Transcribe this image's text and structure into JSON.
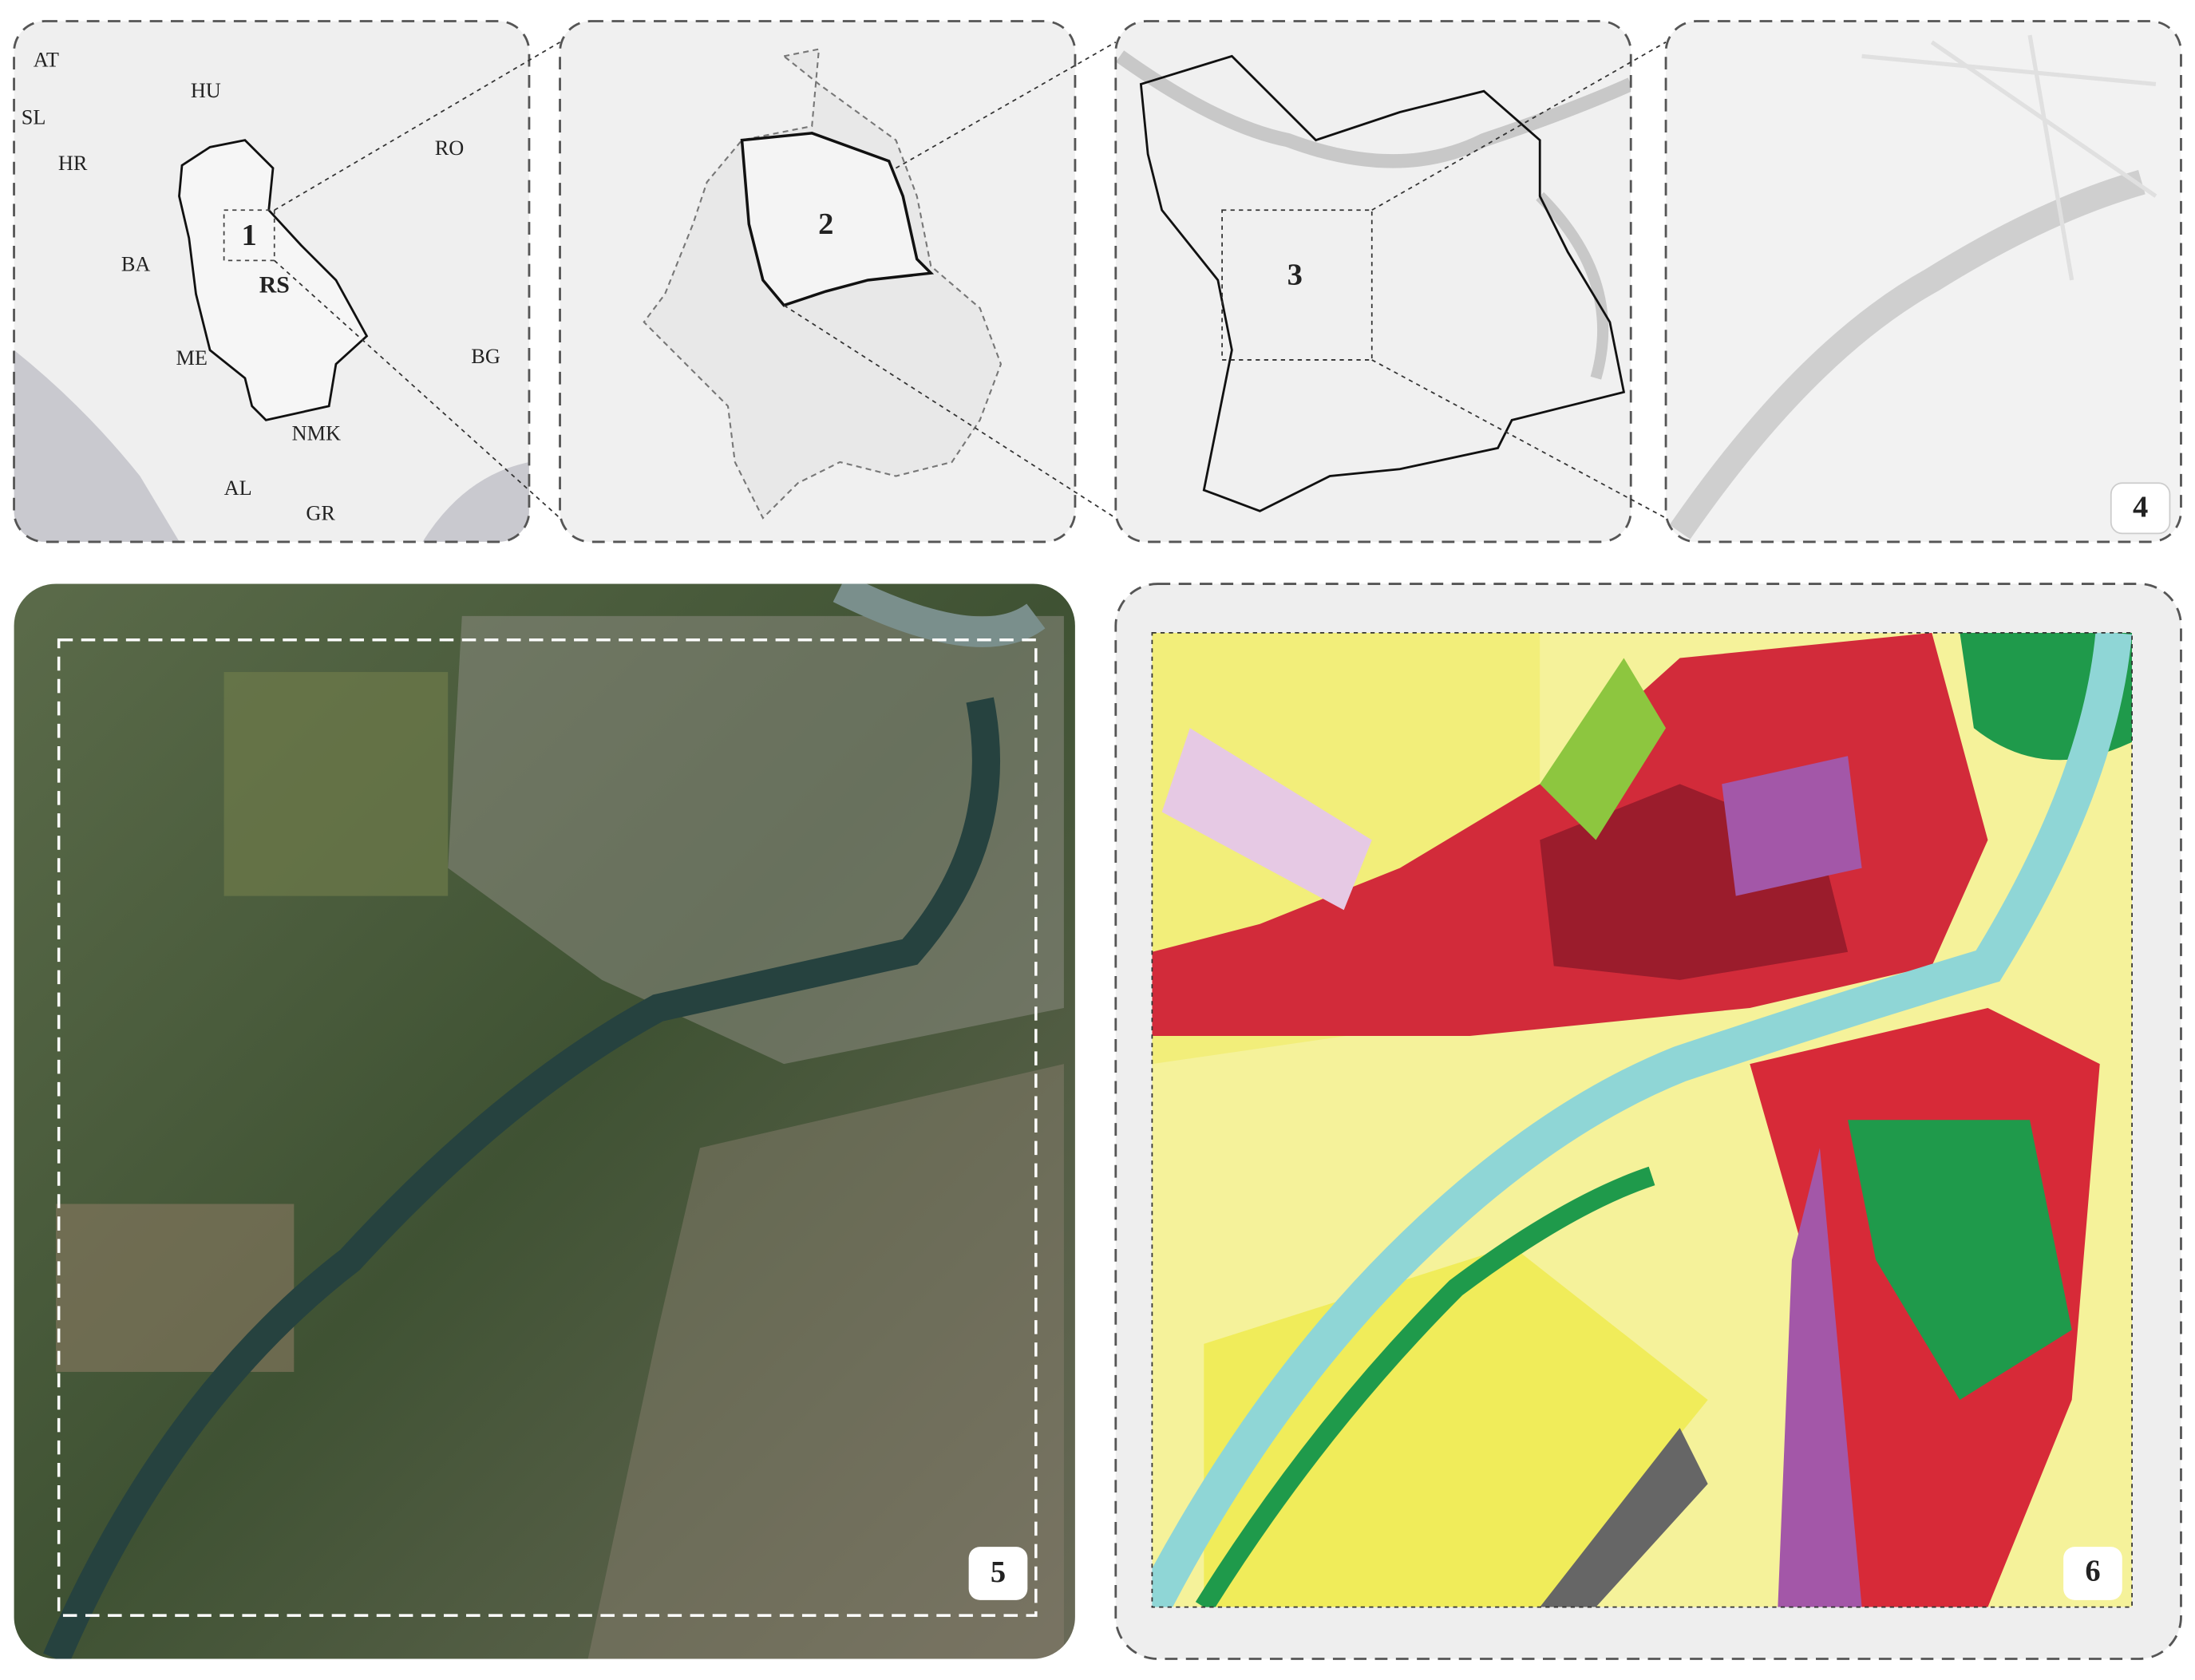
{
  "map_1": {
    "number": "1",
    "country_labels": [
      "AT",
      "HU",
      "SL",
      "HR",
      "RO",
      "BA",
      "RS",
      "ME",
      "BG",
      "NMK",
      "AL",
      "GR"
    ]
  },
  "map_2": {
    "number": "2"
  },
  "map_3": {
    "number": "3"
  },
  "map_4": {
    "number": "4"
  },
  "map_5": {
    "number": "5"
  },
  "map_6": {
    "number": "6"
  }
}
